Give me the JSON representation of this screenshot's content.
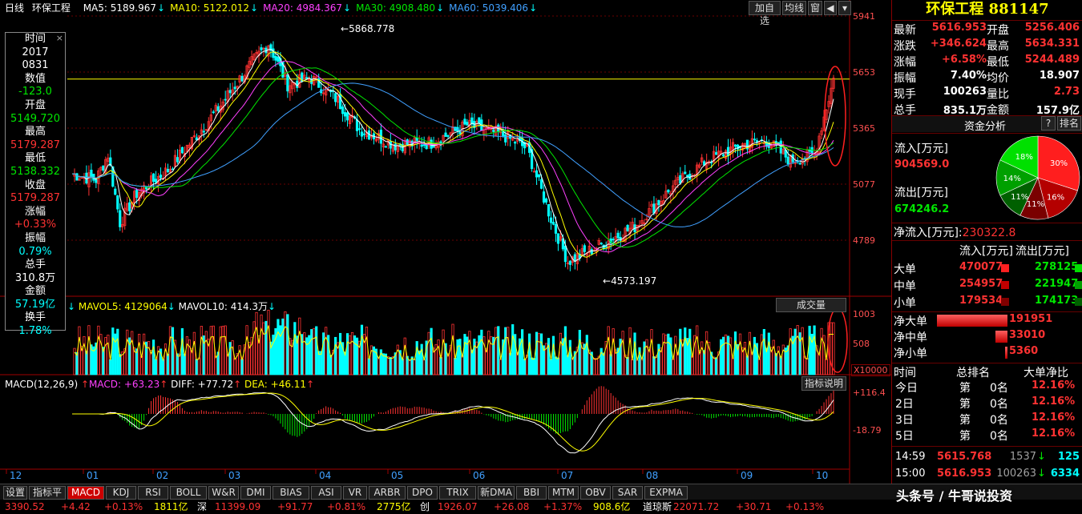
{
  "header": {
    "period": "日线",
    "name": "环保工程",
    "ma": [
      {
        "label": "MA5: 5189.967",
        "color": "#ffffff"
      },
      {
        "label": "MA10: 5122.012",
        "color": "#ffff00"
      },
      {
        "label": "MA20: 4984.367",
        "color": "#ff40ff"
      },
      {
        "label": "MA30: 4908.480",
        "color": "#00e600"
      },
      {
        "label": "MA60: 5039.406",
        "color": "#40a0ff"
      }
    ],
    "buttons": [
      "加自选",
      "均线",
      "窗"
    ]
  },
  "price_axis": [
    "5941",
    "5653",
    "5365",
    "5077",
    "4789"
  ],
  "annotations": {
    "high": "5868.778",
    "low": "4573.197"
  },
  "infobox": {
    "time_label": "时间",
    "year": "2017",
    "date": "0831",
    "value_label": "数值",
    "value": "-123.0",
    "open_label": "开盘",
    "open": "5149.720",
    "high_label": "最高",
    "high": "5179.287",
    "low_label": "最低",
    "low": "5138.332",
    "close_label": "收盘",
    "close": "5179.287",
    "change_label": "涨幅",
    "change": "+0.33%",
    "amp_label": "振幅",
    "amp": "0.79%",
    "vol_label": "总手",
    "vol": "310.8万",
    "amount_label": "金额",
    "amount": "57.19亿",
    "turnover_label": "换手",
    "turnover": "1.78%"
  },
  "volume": {
    "mavol5": "MAVOL5: 4129064",
    "mavol10": "MAVOL10: 414.3万",
    "button": "成交量",
    "axis": [
      "1003",
      "508"
    ],
    "unit": "X10000"
  },
  "macd": {
    "title": "MACD(12,26,9)",
    "macd": "MACD: +63.23",
    "diff": "DIFF: +77.72",
    "dea": "DEA: +46.11",
    "button": "指标说明",
    "axis": [
      "+116.4",
      "-18.79"
    ]
  },
  "months": [
    "12",
    "01",
    "02",
    "03",
    "04",
    "05",
    "06",
    "07",
    "08",
    "09",
    "10"
  ],
  "tabs": [
    "设置",
    "指标平台",
    "MACD",
    "KDJ",
    "RSI",
    "BOLL",
    "W&R",
    "DMI",
    "BIAS",
    "ASI",
    "VR",
    "ARBR",
    "DPO",
    "TRIX",
    "新DMA",
    "BBI",
    "MTM",
    "OBV",
    "SAR",
    "EXPMA"
  ],
  "active_tab": "MACD",
  "statusbar": [
    {
      "text": "3390.52",
      "color": "#ff3232"
    },
    {
      "text": "+4.42",
      "color": "#ff3232"
    },
    {
      "text": "+0.13%",
      "color": "#ff3232"
    },
    {
      "text": "1811亿",
      "color": "#ffff00"
    },
    {
      "text": "深",
      "color": "#ffffff"
    },
    {
      "text": "11399.09",
      "color": "#ff3232"
    },
    {
      "text": "+91.77",
      "color": "#ff3232"
    },
    {
      "text": "+0.81%",
      "color": "#ff3232"
    },
    {
      "text": "2775亿",
      "color": "#ffff00"
    },
    {
      "text": "创",
      "color": "#ffffff"
    },
    {
      "text": "1926.07",
      "color": "#ff3232"
    },
    {
      "text": "+26.08",
      "color": "#ff3232"
    },
    {
      "text": "+1.37%",
      "color": "#ff3232"
    },
    {
      "text": "908.6亿",
      "color": "#ffff00"
    },
    {
      "text": "道琼斯",
      "color": "#ffffff"
    },
    {
      "text": "22071.72",
      "color": "#ff3232"
    },
    {
      "text": "+30.71",
      "color": "#ff3232"
    },
    {
      "text": "+0.13%",
      "color": "#ff3232"
    }
  ],
  "watermark": "头条号 / 牛哥说投资",
  "right": {
    "title": "环保工程 881147",
    "quote": [
      {
        "l1": "最新",
        "v1": "5616.953",
        "c1": "#ff3232",
        "l2": "开盘",
        "v2": "5256.406",
        "c2": "#ff3232"
      },
      {
        "l1": "涨跌",
        "v1": "+346.624",
        "c1": "#ff3232",
        "l2": "最高",
        "v2": "5634.331",
        "c2": "#ff3232"
      },
      {
        "l1": "涨幅",
        "v1": "+6.58%",
        "c1": "#ff3232",
        "l2": "最低",
        "v2": "5244.489",
        "c2": "#ff3232"
      },
      {
        "l1": "振幅",
        "v1": "7.40%",
        "c1": "#ffffff",
        "l2": "均价",
        "v2": "18.907",
        "c2": "#ffffff"
      },
      {
        "l1": "现手",
        "v1": "100263",
        "c1": "#ffffff",
        "l2": "量比",
        "v2": "2.73",
        "c2": "#ff3232"
      },
      {
        "l1": "总手",
        "v1": "835.1万",
        "c1": "#ffffff",
        "l2": "金额",
        "v2": "157.9亿",
        "c2": "#ffffff"
      }
    ],
    "fund_title": "资金分析",
    "fund_help": "?",
    "fund_rank": "排名",
    "inflow_label": "流入[万元]",
    "inflow": "904569.0",
    "outflow_label": "流出[万元]",
    "outflow": "674246.2",
    "net_label": "净流入[万元]:",
    "net": "230322.8",
    "pie": [
      {
        "label": "30%",
        "value": 30,
        "color": "#ff1e1e"
      },
      {
        "label": "16%",
        "value": 16,
        "color": "#b40000"
      },
      {
        "label": "11%",
        "value": 11,
        "color": "#7a0000"
      },
      {
        "label": "11%",
        "value": 11,
        "color": "#006000"
      },
      {
        "label": "14%",
        "value": 14,
        "color": "#00a000"
      },
      {
        "label": "18%",
        "value": 18,
        "color": "#00e000"
      }
    ],
    "flow_head": [
      "流入[万元]",
      "流出[万元]"
    ],
    "flow_rows": [
      {
        "name": "大单",
        "in": "470077",
        "out": "278125"
      },
      {
        "name": "中单",
        "in": "254957",
        "out": "221947"
      },
      {
        "name": "小单",
        "in": "179534",
        "out": "174173"
      }
    ],
    "net_rows": [
      {
        "name": "净大单",
        "value": "191951",
        "ratio": 1.0
      },
      {
        "name": "净中单",
        "value": "33010",
        "ratio": 0.17
      },
      {
        "name": "净小单",
        "value": "5360",
        "ratio": 0.03
      }
    ],
    "rank_head": [
      "时间",
      "总排名",
      "大单净比"
    ],
    "rank_rows": [
      {
        "t": "今日",
        "r1": "第",
        "r2": "0名",
        "v": "12.16%"
      },
      {
        "t": "2日",
        "r1": "第",
        "r2": "0名",
        "v": "12.16%"
      },
      {
        "t": "3日",
        "r1": "第",
        "r2": "0名",
        "v": "12.16%"
      },
      {
        "t": "5日",
        "r1": "第",
        "r2": "0名",
        "v": "12.16%"
      }
    ],
    "ticks": [
      {
        "time": "14:59",
        "price": "5615.768",
        "vol": "1537",
        "dir": "↓",
        "n": "125"
      },
      {
        "time": "15:00",
        "price": "5616.953",
        "vol": "100263",
        "dir": "↓",
        "n": "6334"
      }
    ]
  },
  "chart_data": [
    {
      "type": "candlestick",
      "title": "环保工程",
      "series_summary": "daily OHLC, 2016-12 to 2017-10",
      "months": [
        "12",
        "01",
        "02",
        "03",
        "04",
        "05",
        "06",
        "07",
        "08",
        "09",
        "10"
      ],
      "ylim": [
        4573.197,
        5941
      ],
      "ref_line": 5616.953,
      "annotated_high": 5868.778,
      "annotated_low": 4573.197,
      "last": {
        "open": 5256.406,
        "high": 5634.331,
        "low": 5244.489,
        "close": 5616.953
      },
      "ma_last": {
        "MA5": 5189.967,
        "MA10": 5122.012,
        "MA20": 4984.367,
        "MA30": 4908.48,
        "MA60": 5039.406
      }
    },
    {
      "type": "bar",
      "title": "成交量",
      "ylim": [
        0,
        1003
      ],
      "unit": "X10000",
      "mavol_last": {
        "MAVOL5": 4129064,
        "MAVOL10": "414.3万"
      }
    },
    {
      "type": "bar",
      "title": "MACD(12,26,9)",
      "ylim": [
        -18.79,
        116.4
      ],
      "last": {
        "MACD": 63.23,
        "DIFF": 77.72,
        "DEA": 46.11
      }
    }
  ]
}
